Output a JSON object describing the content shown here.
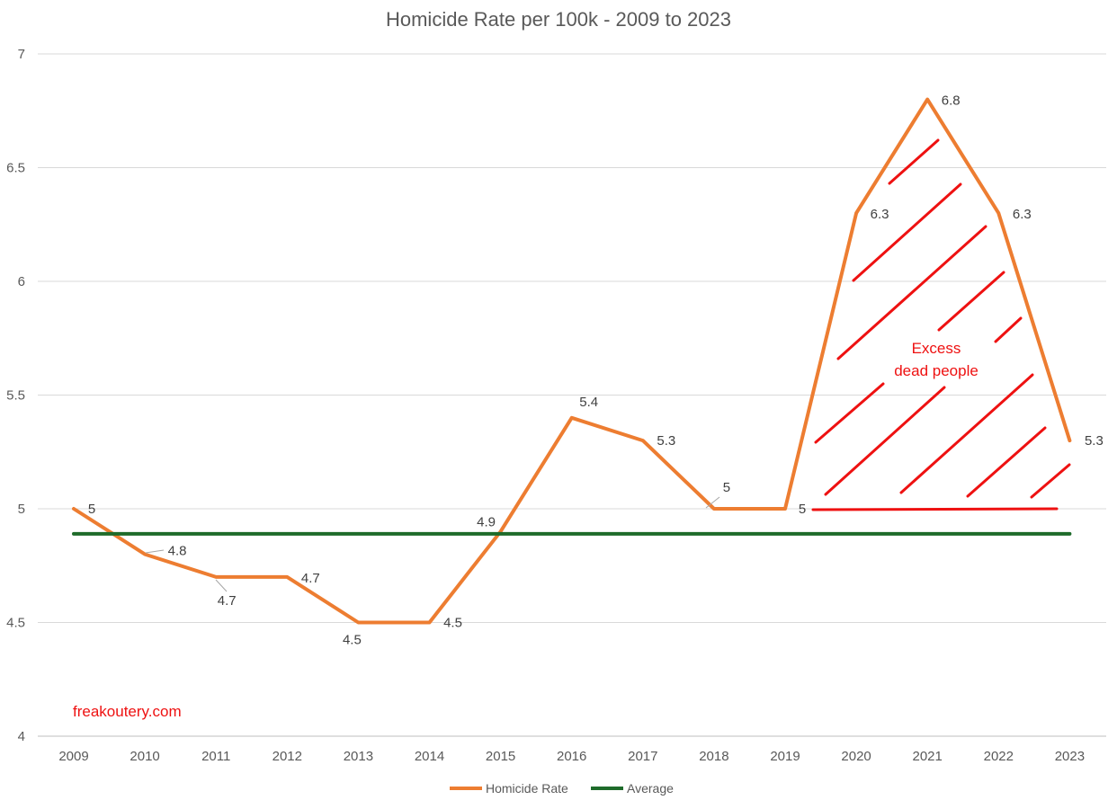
{
  "chart_data": {
    "type": "line",
    "title": "Homicide Rate per 100k - 2009 to 2023",
    "xlabel": "",
    "ylabel": "",
    "categories": [
      "2009",
      "2010",
      "2011",
      "2012",
      "2013",
      "2014",
      "2015",
      "2016",
      "2017",
      "2018",
      "2019",
      "2020",
      "2021",
      "2022",
      "2023"
    ],
    "ylim": [
      4,
      7
    ],
    "yticks": [
      "4",
      "4.5",
      "5",
      "5.5",
      "6",
      "6.5",
      "7"
    ],
    "grid": "horizontal",
    "legend_position": "bottom",
    "series": [
      {
        "name": "Homicide Rate",
        "color": "#ED7D31",
        "values": [
          5,
          4.8,
          4.7,
          4.7,
          4.5,
          4.5,
          4.9,
          5.4,
          5.3,
          5,
          5,
          6.3,
          6.8,
          6.3,
          5.3
        ],
        "data_labels": [
          "5",
          "4.8",
          "4.7",
          "4.7",
          "4.5",
          "4.5",
          "4.9",
          "5.4",
          "5.3",
          "5",
          "5",
          "6.3",
          "6.8",
          "6.3",
          "5.3"
        ]
      },
      {
        "name": "Average",
        "color": "#1E6B2A",
        "values": [
          4.89,
          4.89,
          4.89,
          4.89,
          4.89,
          4.89,
          4.89,
          4.89,
          4.89,
          4.89,
          4.89,
          4.89,
          4.89,
          4.89,
          4.89
        ]
      }
    ],
    "annotations": {
      "excess_text_line1": "Excess",
      "excess_text_line2": "dead people",
      "watermark": "freakoutery.com",
      "annotation_color": "#EE1111"
    }
  }
}
